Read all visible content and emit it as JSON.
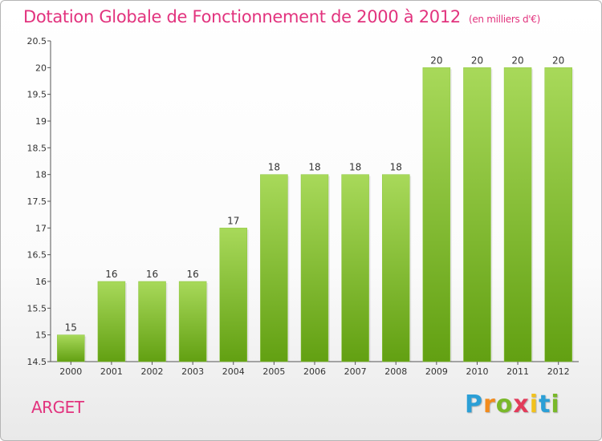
{
  "title": "Dotation Globale de Fonctionnement de 2000 à 2012",
  "subtitle": "(en milliers d'€)",
  "place": "ARGET",
  "brand": {
    "letters": [
      "P",
      "r",
      "o",
      "x",
      "i",
      "t",
      "i"
    ],
    "colors": [
      "#2b9fd6",
      "#f28b1c",
      "#79b829",
      "#e23b5a",
      "#f2c21c",
      "#2b9fd6",
      "#79b829"
    ]
  },
  "colors": {
    "bar_light": "#a8d95a",
    "bar_dark": "#62a012",
    "title": "#e2337e"
  },
  "chart_data": {
    "type": "bar",
    "title": "Dotation Globale de Fonctionnement de 2000 à 2012",
    "subtitle": "(en milliers d'€)",
    "categories": [
      "2000",
      "2001",
      "2002",
      "2003",
      "2004",
      "2005",
      "2006",
      "2007",
      "2008",
      "2009",
      "2010",
      "2011",
      "2012"
    ],
    "values": [
      15,
      16,
      16,
      16,
      17,
      18,
      18,
      18,
      18,
      20,
      20,
      20,
      20
    ],
    "data_labels": [
      "15",
      "16",
      "16",
      "16",
      "17",
      "18",
      "18",
      "18",
      "18",
      "20",
      "20",
      "20",
      "20"
    ],
    "ylim": [
      14.5,
      20.5
    ],
    "yticks": [
      14.5,
      15,
      15.5,
      16,
      16.5,
      17,
      17.5,
      18,
      18.5,
      19,
      19.5,
      20,
      20.5
    ],
    "ytick_labels": [
      "14.5",
      "15",
      "15.5",
      "16",
      "16.5",
      "17",
      "17.5",
      "18",
      "18.5",
      "19",
      "19.5",
      "20",
      "20.5"
    ],
    "grid": false,
    "legend": "none"
  }
}
